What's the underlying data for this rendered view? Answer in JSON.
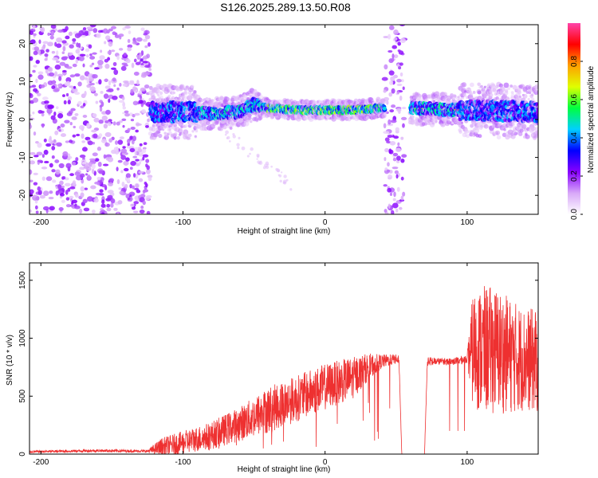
{
  "chart_data": [
    {
      "type": "heatmap",
      "title": "S126.2025.289.13.50.R08",
      "xlabel": "Height of straight line (km)",
      "ylabel": "Frequency (Hz)",
      "xlim": [
        -208,
        150
      ],
      "ylim": [
        -25,
        25
      ],
      "xticks": [
        -200,
        -100,
        0,
        100
      ],
      "yticks": [
        -20,
        -10,
        0,
        10,
        20
      ],
      "ytick_labels": [
        "-20",
        "-10",
        "0",
        "10",
        "20"
      ],
      "noise_bands": [
        [
          -208,
          -123
        ],
        [
          42,
          56
        ]
      ],
      "gap_band": [
        56,
        60
      ],
      "signal_track": [
        {
          "x": -123,
          "y": 2
        },
        {
          "x": -100,
          "y": 2
        },
        {
          "x": -80,
          "y": 1.5
        },
        {
          "x": -60,
          "y": 2
        },
        {
          "x": -50,
          "y": 4
        },
        {
          "x": -40,
          "y": 3
        },
        {
          "x": -20,
          "y": 2.5
        },
        {
          "x": 0,
          "y": 2.5
        },
        {
          "x": 20,
          "y": 2.5
        },
        {
          "x": 40,
          "y": 3
        },
        {
          "x": 60,
          "y": 3
        },
        {
          "x": 90,
          "y": 2.5
        },
        {
          "x": 100,
          "y": 2.5
        },
        {
          "x": 150,
          "y": 2
        }
      ],
      "colorbar": {
        "label": "Normalized spectral amplitude",
        "range": [
          0,
          1
        ],
        "ticks": [
          0.0,
          0.2,
          0.4,
          0.6,
          0.8
        ],
        "tick_labels": [
          "0.0",
          "0.2",
          "0.4",
          "0.6",
          "0.8"
        ],
        "colors": [
          "#ffffff",
          "#d8a8f8",
          "#8800ff",
          "#0000ff",
          "#00d0ff",
          "#00ff40",
          "#e0ff00",
          "#ffa000",
          "#ff0000",
          "#ff44aa"
        ]
      }
    },
    {
      "type": "line",
      "xlabel": "Height of straight line (km)",
      "ylabel": "SNR (10 * v/v)",
      "xlim": [
        -208,
        150
      ],
      "ylim": [
        0,
        1650
      ],
      "xticks": [
        -200,
        -100,
        0,
        100
      ],
      "yticks": [
        0,
        500,
        1000,
        1500
      ],
      "color": "#ee3030",
      "series": [
        {
          "name": "SNR",
          "x": [
            -208,
            -160,
            -125,
            -115,
            -100,
            -80,
            -60,
            -40,
            -20,
            0,
            20,
            30,
            40,
            50,
            52,
            54,
            70,
            72,
            80,
            90,
            100,
            104,
            110,
            120,
            130,
            140,
            150
          ],
          "y": [
            20,
            30,
            25,
            60,
            100,
            160,
            260,
            380,
            480,
            580,
            660,
            750,
            800,
            820,
            820,
            0,
            0,
            800,
            800,
            800,
            820,
            900,
            900,
            900,
            850,
            820,
            800
          ],
          "jitter": [
            10,
            12,
            12,
            80,
            100,
            120,
            150,
            200,
            200,
            200,
            180,
            120,
            60,
            40,
            40,
            0,
            0,
            40,
            30,
            30,
            40,
            500,
            550,
            550,
            500,
            450,
            450
          ]
        }
      ]
    }
  ]
}
